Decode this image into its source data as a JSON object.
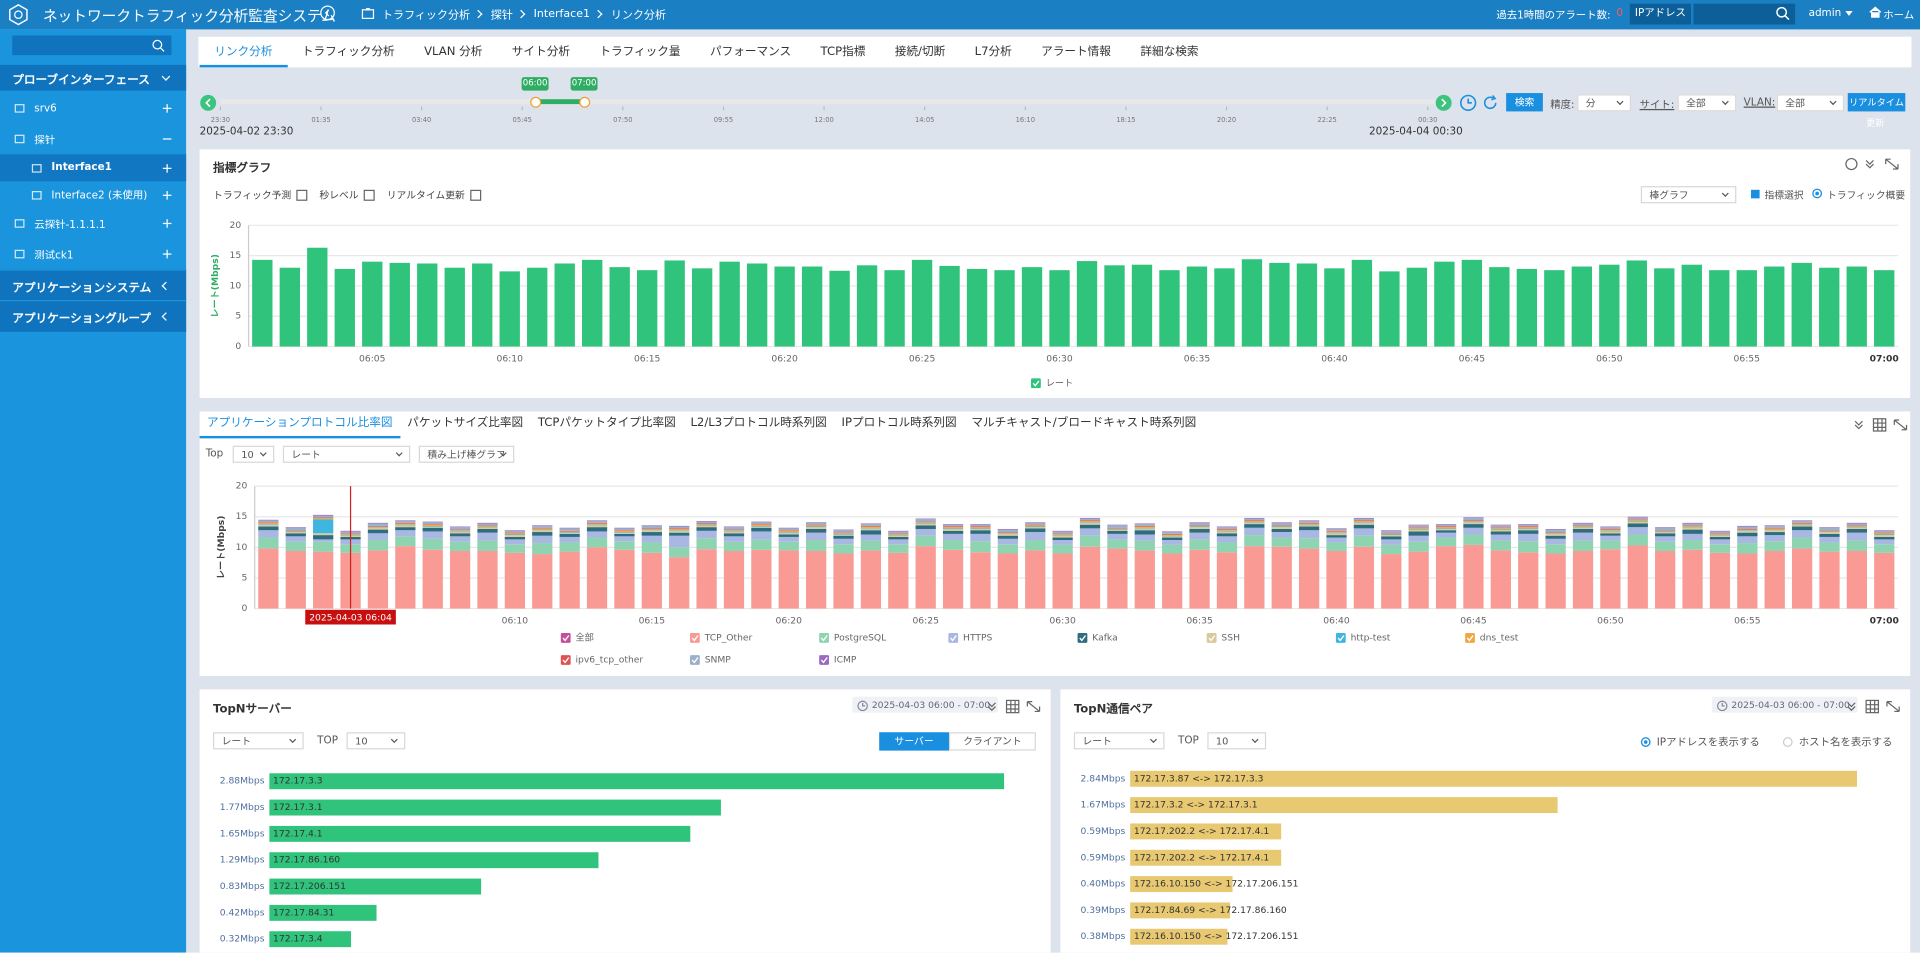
{
  "header": {
    "title": "ネットワークトラフィック分析監査システム",
    "breadcrumb": [
      "トラフィック分析",
      "探针",
      "Interface1",
      "リンク分析"
    ],
    "alarm_label": "過去1時間のアラート数:",
    "alarm_count": 0,
    "ip_button": "IPアドレス",
    "user": "admin",
    "home": "ホーム"
  },
  "sidebar": {
    "probe_title": "プローブインターフェース",
    "nodes": [
      {
        "label": "srv6"
      },
      {
        "label": "探针",
        "children": [
          "Interface1",
          "Interface2 (未使用)"
        ]
      },
      {
        "label": "云探针-1.1.1.1"
      },
      {
        "label": "测试ck1"
      }
    ],
    "app_sections": [
      "アプリケーションシステム",
      "アプリケーショングループ"
    ]
  },
  "tabs": {
    "items": [
      "リンク分析",
      "トラフィック分析",
      "VLAN 分析",
      "サイト分析",
      "トラフィック量",
      "パフォーマンス",
      "TCP指標",
      "接続/切断",
      "L7分析",
      "アラート情報",
      "詳細な検索"
    ],
    "active": 0
  },
  "timeline": {
    "ticks": [
      "23:30",
      "01:35",
      "03:40",
      "05:45",
      "07:50",
      "09:55",
      "12:00",
      "14:05",
      "16:10",
      "18:15",
      "20:20",
      "22:25",
      "00:30"
    ],
    "start": "2025-04-02 23:30",
    "end": "2025-04-04 00:30",
    "window": [
      "06:00",
      "07:00"
    ],
    "search": "検索",
    "precision_label": "精度:",
    "precision": "分",
    "site_label": "サイト:",
    "site": "全部",
    "vlan_label": "VLAN:",
    "vlan": "全部",
    "realtime": "リアルタイム",
    "update": "更新"
  },
  "metric_panel": {
    "title": "指標グラフ",
    "options": [
      "トラフィック予測",
      "秒レベル",
      "リアルタイム更新"
    ],
    "chart_select": "棒グラフ",
    "metric_select": "指標選択",
    "overview": "トラフィック概要"
  },
  "protocol_panel": {
    "tabs": [
      "アプリケーションプロトコル比率図",
      "パケットサイズ比率図",
      "TCPパケットタイプ比率図",
      "L2/L3プロトコル時系列図",
      "IPプロトコル時系列図",
      "マルチキャスト/ブロードキャスト時系列図"
    ],
    "active": 0,
    "top_label": "Top",
    "top": 10,
    "metric": "レート",
    "chart_type": "積み上げ棒グラフ",
    "legend_all": {
      "name": "全部",
      "color": "#c4509a"
    }
  },
  "server_panel": {
    "title": "TopNサーバー",
    "time": "2025-04-03 06:00 - 07:00",
    "metric": "レート",
    "top_label": "TOP",
    "top": 10,
    "buttons": [
      "サーバー",
      "クライアント"
    ]
  },
  "pair_panel": {
    "title": "TopN通信ペア",
    "time": "2025-04-03 06:00 - 07:00",
    "metric": "レート",
    "top_label": "TOP",
    "top": 10,
    "radios": [
      "IPアドレスを表示する",
      "ホスト名を表示する"
    ]
  },
  "chart_data": [
    {
      "type": "bar",
      "ylabel": "レート(Mbps)",
      "ylim": [
        0,
        20
      ],
      "yticks": [
        0,
        5,
        10,
        15,
        20
      ],
      "grid": true,
      "categories": [
        null,
        null,
        null,
        null,
        "06:05",
        null,
        null,
        null,
        null,
        "06:10",
        null,
        null,
        null,
        null,
        "06:15",
        null,
        null,
        null,
        null,
        "06:20",
        null,
        null,
        null,
        null,
        "06:25",
        null,
        null,
        null,
        null,
        "06:30",
        null,
        null,
        null,
        null,
        "06:35",
        null,
        null,
        null,
        null,
        "06:40",
        null,
        null,
        null,
        null,
        "06:45",
        null,
        null,
        null,
        null,
        "06:50",
        null,
        null,
        null,
        null,
        "06:55",
        null,
        null,
        null,
        null,
        "07:00"
      ],
      "series": [
        {
          "name": "レート",
          "color": "#2fc37c",
          "values": [
            14.3,
            13,
            16.3,
            12.8,
            14,
            13.8,
            13.7,
            13,
            13.7,
            12.4,
            13,
            13.7,
            14.3,
            13.1,
            12.6,
            14.2,
            12.9,
            14,
            13.7,
            13.2,
            13.2,
            12.5,
            13.4,
            12.6,
            14.3,
            13.3,
            12.8,
            12.6,
            13.1,
            12.6,
            14.1,
            13.4,
            13.5,
            12.6,
            13.2,
            12.9,
            14.4,
            13.8,
            13.7,
            12.9,
            14.3,
            12.4,
            13,
            14,
            14.3,
            13.1,
            12.8,
            12.6,
            13.2,
            13.5,
            14.2,
            12.9,
            13.5,
            12.6,
            12.6,
            13.2,
            13.8,
            13,
            13.2,
            12.6
          ]
        }
      ]
    },
    {
      "type": "stacked_bar",
      "ylabel": "レート(Mbps)",
      "ylim": [
        0,
        20
      ],
      "yticks": [
        0,
        5,
        10,
        15,
        20
      ],
      "grid": true,
      "cursor": {
        "index": 3,
        "label": "2025-04-03 06:04"
      },
      "categories": [
        null,
        null,
        null,
        null,
        "06:05",
        null,
        null,
        null,
        null,
        "06:10",
        null,
        null,
        null,
        null,
        "06:15",
        null,
        null,
        null,
        null,
        "06:20",
        null,
        null,
        null,
        null,
        "06:25",
        null,
        null,
        null,
        null,
        "06:30",
        null,
        null,
        null,
        null,
        "06:35",
        null,
        null,
        null,
        null,
        "06:40",
        null,
        null,
        null,
        null,
        "06:45",
        null,
        null,
        null,
        null,
        "06:50",
        null,
        null,
        null,
        null,
        "06:55",
        null,
        null,
        null,
        null,
        "07:00"
      ],
      "series": [
        {
          "name": "TCP_Other",
          "color": "#f99b94",
          "values": [
            9.8,
            9.4,
            9.3,
            9.1,
            9.5,
            10.2,
            9.6,
            9.4,
            9.4,
            9.1,
            8.9,
            9.3,
            10.0,
            9.6,
            9.1,
            8.4,
            9.7,
            9.4,
            9.6,
            9.5,
            9.4,
            9.0,
            9.5,
            9.1,
            10.2,
            9.6,
            9.2,
            9.0,
            9.5,
            9.0,
            10.1,
            9.8,
            9.5,
            9.0,
            9.6,
            9.2,
            10.2,
            10.1,
            9.8,
            9.4,
            10.1,
            8.9,
            9.3,
            10.2,
            10.4,
            9.5,
            9.2,
            9.0,
            9.4,
            9.7,
            10.3,
            9.4,
            9.6,
            9.1,
            9.0,
            9.4,
            9.8,
            9.3,
            9.4,
            9.1
          ]
        },
        {
          "name": "PostgreSQL",
          "color": "#8ed4b1",
          "values": [
            1.8,
            1.5,
            1.6,
            1.4,
            1.7,
            1.6,
            1.8,
            1.5,
            1.7,
            1.4,
            1.8,
            1.5,
            1.6,
            1.4,
            1.7,
            1.6,
            1.8,
            1.5,
            1.7,
            1.4,
            1.8,
            1.5,
            1.6,
            1.4,
            1.7,
            1.6,
            1.8,
            1.5,
            1.7,
            1.4,
            1.8,
            1.5,
            1.6,
            1.4,
            1.7,
            1.6,
            1.8,
            1.5,
            1.7,
            1.4,
            1.8,
            1.5,
            1.6,
            1.4,
            1.7,
            1.6,
            1.8,
            1.5,
            1.7,
            1.4,
            1.8,
            1.5,
            1.6,
            1.4,
            1.7,
            1.6,
            1.8,
            1.5,
            1.7,
            1.4
          ]
        },
        {
          "name": "HTTPS",
          "color": "#a9b8e2",
          "values": [
            1.2,
            0.9,
            0.4,
            0.8,
            1.1,
            1.0,
            1.2,
            0.9,
            1.3,
            0.8,
            1.2,
            0.9,
            1.0,
            0.8,
            1.1,
            1.9,
            1.2,
            0.9,
            1.3,
            0.8,
            1.2,
            0.9,
            1.0,
            0.8,
            1.1,
            1.0,
            1.2,
            0.9,
            1.3,
            0.8,
            1.2,
            0.9,
            1.0,
            0.8,
            1.1,
            1.0,
            1.2,
            0.9,
            1.3,
            0.8,
            1.2,
            0.9,
            1.0,
            0.8,
            1.1,
            1.0,
            1.2,
            0.9,
            1.3,
            0.8,
            1.2,
            0.9,
            1.0,
            0.8,
            1.1,
            1.0,
            1.2,
            0.9,
            1.3,
            0.8
          ]
        },
        {
          "name": "Kafka",
          "color": "#2e6d80",
          "values": [
            0.6,
            0.5,
            0.7,
            0.4,
            0.6,
            0.5,
            0.6,
            0.5,
            0.6,
            0.4,
            0.6,
            0.5,
            0.7,
            0.4,
            0.6,
            0.5,
            0.6,
            0.5,
            0.6,
            0.4,
            0.6,
            0.5,
            0.7,
            0.4,
            0.6,
            0.5,
            0.6,
            0.5,
            0.6,
            0.4,
            0.6,
            0.5,
            0.7,
            0.4,
            0.6,
            0.5,
            0.6,
            0.5,
            0.6,
            0.4,
            0.6,
            0.5,
            0.7,
            0.4,
            0.6,
            0.5,
            0.6,
            0.5,
            0.6,
            0.4,
            0.6,
            0.5,
            0.7,
            0.4,
            0.6,
            0.5,
            0.6,
            0.5,
            0.6,
            0.4
          ]
        },
        {
          "name": "SSH",
          "color": "#d9c99b",
          "values": [
            0.3,
            0.2,
            0.3,
            0.2,
            0.3,
            0.3,
            0.2,
            0.3,
            0.2,
            0.3,
            0.3,
            0.2,
            0.3,
            0.2,
            0.3,
            0.3,
            0.2,
            0.3,
            0.2,
            0.3,
            0.3,
            0.2,
            0.3,
            0.2,
            0.3,
            0.3,
            0.2,
            0.3,
            0.2,
            0.3,
            0.3,
            0.2,
            0.3,
            0.2,
            0.3,
            0.3,
            0.2,
            0.3,
            0.2,
            0.3,
            0.3,
            0.2,
            0.3,
            0.2,
            0.3,
            0.3,
            0.2,
            0.3,
            0.2,
            0.3,
            0.3,
            0.2,
            0.3,
            0.2,
            0.3,
            0.3,
            0.2,
            0.3,
            0.2,
            0.3
          ]
        },
        {
          "name": "http-test",
          "color": "#3fb5e0",
          "values": [
            0.1,
            0.1,
            2.3,
            0.1,
            0.1,
            0.1,
            0.1,
            0.1,
            0.1,
            0.1,
            0.1,
            0.1,
            0.1,
            0.1,
            0.1,
            0.1,
            0.1,
            0.1,
            0.1,
            0.1,
            0.1,
            0.1,
            0.1,
            0.1,
            0.1,
            0.1,
            0.1,
            0.1,
            0.1,
            0.1,
            0.1,
            0.1,
            0.1,
            0.1,
            0.1,
            0.1,
            0.1,
            0.1,
            0.1,
            0.1,
            0.1,
            0.1,
            0.1,
            0.1,
            0.1,
            0.1,
            0.1,
            0.1,
            0.1,
            0.1,
            0.1,
            0.1,
            0.1,
            0.1,
            0.1,
            0.1,
            0.1,
            0.1,
            0.1,
            0.1
          ]
        },
        {
          "name": "dns_test",
          "color": "#f0a846",
          "values": [
            0.2,
            0.1,
            0.2,
            0.2,
            0.1,
            0.2,
            0.2,
            0.1,
            0.2,
            0.2,
            0.2,
            0.1,
            0.2,
            0.2,
            0.1,
            0.2,
            0.2,
            0.1,
            0.2,
            0.2,
            0.2,
            0.1,
            0.2,
            0.2,
            0.1,
            0.2,
            0.2,
            0.1,
            0.2,
            0.2,
            0.2,
            0.1,
            0.2,
            0.2,
            0.1,
            0.2,
            0.2,
            0.1,
            0.2,
            0.2,
            0.2,
            0.1,
            0.2,
            0.2,
            0.1,
            0.2,
            0.2,
            0.1,
            0.2,
            0.2,
            0.2,
            0.1,
            0.2,
            0.2,
            0.1,
            0.2,
            0.2,
            0.1,
            0.2,
            0.2
          ]
        },
        {
          "name": "ipv6_tcp_other",
          "color": "#e05252",
          "values": [
            0.1,
            0.1,
            0.1,
            0.1,
            0.1,
            0.1,
            0.1,
            0.1,
            0.1,
            0.1,
            0.1,
            0.1,
            0.1,
            0.1,
            0.1,
            0.1,
            0.1,
            0.1,
            0.1,
            0.1,
            0.1,
            0.1,
            0.1,
            0.1,
            0.1,
            0.1,
            0.1,
            0.1,
            0.1,
            0.1,
            0.1,
            0.1,
            0.1,
            0.1,
            0.1,
            0.1,
            0.1,
            0.1,
            0.1,
            0.1,
            0.1,
            0.1,
            0.1,
            0.1,
            0.1,
            0.1,
            0.1,
            0.1,
            0.1,
            0.1,
            0.1,
            0.1,
            0.1,
            0.1,
            0.1,
            0.1,
            0.1,
            0.1,
            0.1,
            0.1
          ]
        },
        {
          "name": "SNMP",
          "color": "#9cb0c9",
          "values": [
            0.3,
            0.4,
            0.3,
            0.3,
            0.4,
            0.3,
            0.3,
            0.4,
            0.3,
            0.3,
            0.3,
            0.4,
            0.3,
            0.3,
            0.4,
            0.3,
            0.3,
            0.4,
            0.3,
            0.3,
            0.3,
            0.4,
            0.3,
            0.3,
            0.4,
            0.3,
            0.3,
            0.4,
            0.3,
            0.3,
            0.3,
            0.4,
            0.3,
            0.3,
            0.4,
            0.3,
            0.3,
            0.4,
            0.3,
            0.3,
            0.3,
            0.4,
            0.3,
            0.3,
            0.4,
            0.3,
            0.3,
            0.4,
            0.3,
            0.3,
            0.3,
            0.4,
            0.3,
            0.3,
            0.4,
            0.3,
            0.3,
            0.4,
            0.3,
            0.3
          ]
        },
        {
          "name": "ICMP",
          "color": "#9a6ac1",
          "values": [
            0.1,
            0.1,
            0.1,
            0.1,
            0.1,
            0.1,
            0.1,
            0.1,
            0.1,
            0.1,
            0.1,
            0.1,
            0.1,
            0.1,
            0.1,
            0.1,
            0.1,
            0.1,
            0.1,
            0.1,
            0.1,
            0.1,
            0.1,
            0.1,
            0.1,
            0.1,
            0.1,
            0.1,
            0.1,
            0.1,
            0.1,
            0.1,
            0.1,
            0.1,
            0.1,
            0.1,
            0.1,
            0.1,
            0.1,
            0.1,
            0.1,
            0.1,
            0.1,
            0.1,
            0.1,
            0.1,
            0.1,
            0.1,
            0.1,
            0.1,
            0.1,
            0.1,
            0.1,
            0.1,
            0.1,
            0.1,
            0.1,
            0.1,
            0.1,
            0.1
          ]
        }
      ]
    },
    {
      "type": "hbar",
      "color": "#2fc37c",
      "xlim": [
        0,
        3
      ],
      "categories": [
        "172.17.3.3",
        "172.17.3.1",
        "172.17.4.1",
        "172.17.86.160",
        "172.17.206.151",
        "172.17.84.31",
        "172.17.3.4"
      ],
      "values": [
        2.88,
        1.77,
        1.65,
        1.29,
        0.83,
        0.42,
        0.32
      ],
      "value_labels": [
        "2.88Mbps",
        "1.77Mbps",
        "1.65Mbps",
        "1.29Mbps",
        "0.83Mbps",
        "0.42Mbps",
        "0.32Mbps"
      ]
    },
    {
      "type": "hbar",
      "color": "#e8c870",
      "xlim": [
        0,
        3
      ],
      "categories": [
        "172.17.3.87 <-> 172.17.3.3",
        "172.17.3.2 <-> 172.17.3.1",
        "172.17.202.2 <-> 172.17.4.1",
        "172.17.202.2 <-> 172.17.4.1",
        "172.16.10.150 <-> 172.17.206.151",
        "172.17.84.69 <-> 172.17.86.160",
        "172.16.10.150 <-> 172.17.206.151"
      ],
      "values": [
        2.84,
        1.67,
        0.59,
        0.59,
        0.4,
        0.39,
        0.38
      ],
      "value_labels": [
        "2.84Mbps",
        "1.67Mbps",
        "0.59Mbps",
        "0.59Mbps",
        "0.40Mbps",
        "0.39Mbps",
        "0.38Mbps"
      ]
    }
  ]
}
